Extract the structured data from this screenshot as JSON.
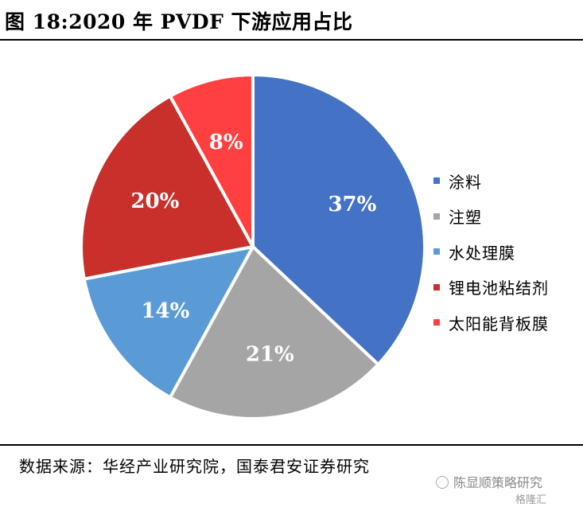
{
  "header": {
    "title": "图 18:2020 年 PVDF 下游应用占比"
  },
  "chart_data": {
    "type": "pie",
    "title": "图 18:2020 年 PVDF 下游应用占比",
    "categories": [
      "涂料",
      "注塑",
      "水处理膜",
      "锂电池粘结剂",
      "太阳能背板膜"
    ],
    "values": [
      37,
      21,
      14,
      20,
      8
    ],
    "value_labels": [
      "37%",
      "21%",
      "14%",
      "20%",
      "8%"
    ],
    "colors": [
      "#4472C4",
      "#A5A5A5",
      "#5B9BD5",
      "#C9302C",
      "#FF4040"
    ],
    "start_angle": "12 o'clock, clockwise",
    "legend_position": "right"
  },
  "footer": {
    "source": "数据来源：华经产业研究院，国泰君安证券研究",
    "watermark": "陈显顺策略研究",
    "brand": "格隆汇"
  }
}
